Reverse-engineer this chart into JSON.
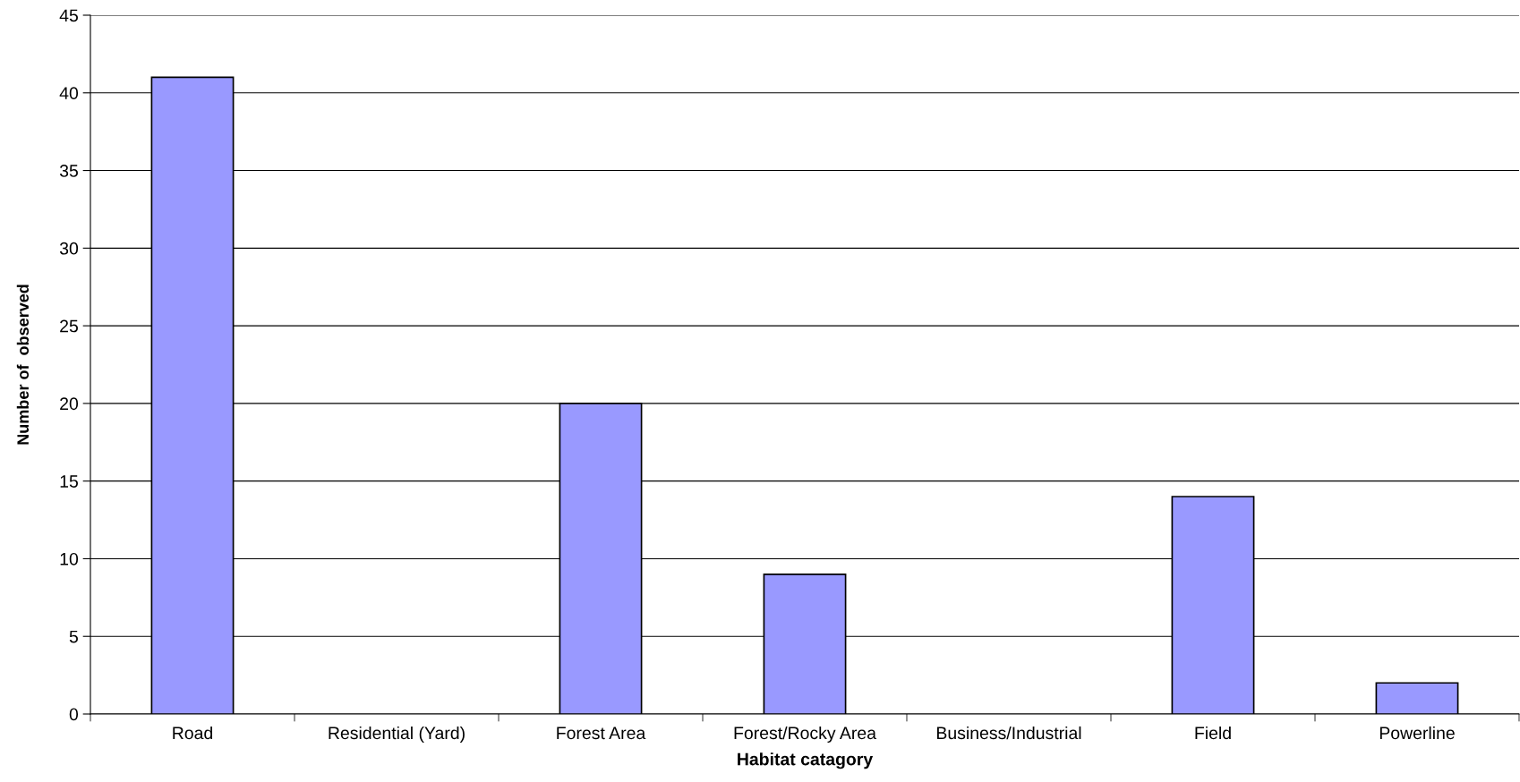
{
  "chart_data": {
    "type": "bar",
    "xlabel": "Habitat catagory",
    "ylabel": "Number of  observed",
    "categories": [
      "Road",
      "Residential (Yard)",
      "Forest Area",
      "Forest/Rocky Area",
      "Business/Industrial",
      "Field",
      "Powerline"
    ],
    "values": [
      41,
      0,
      20,
      9,
      0,
      14,
      2
    ],
    "color": "#9999ff",
    "ylim": [
      0,
      45
    ],
    "yticks": [
      0,
      5,
      10,
      15,
      20,
      25,
      30,
      35,
      40,
      45
    ],
    "grid": "y",
    "legend": false
  }
}
